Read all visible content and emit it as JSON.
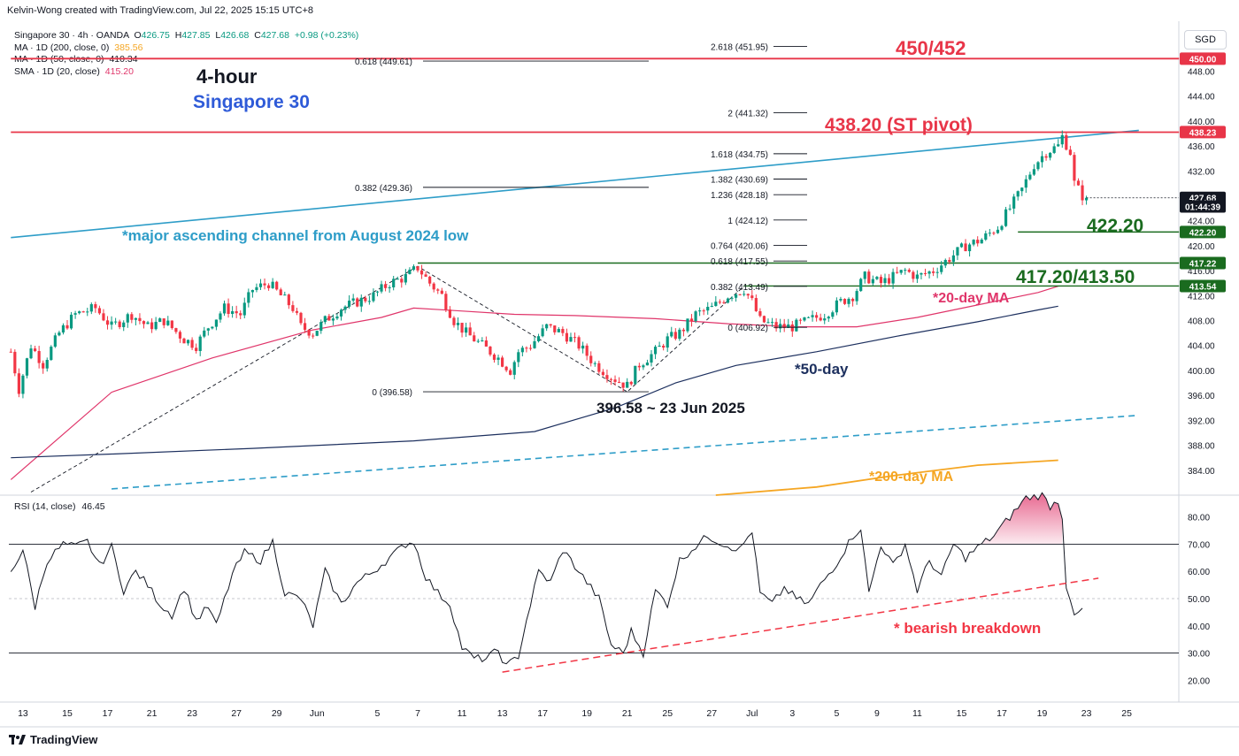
{
  "header": {
    "credit": "Kelvin-Wong created with TradingView.com, Jul 22, 2025 15:15 UTC+8"
  },
  "legend": {
    "symbol": "Singapore 30 · 4h · OANDA",
    "o_label": "O",
    "o": "426.75",
    "h_label": "H",
    "h": "427.85",
    "l_label": "L",
    "l": "426.68",
    "c_label": "C",
    "c": "427.68",
    "change": "+0.98 (+0.23%)",
    "ma200_label": "MA · 1D (200, close, 0)",
    "ma200": "385.56",
    "ma50_label": "MA · 1D (50, close, 0)",
    "ma50": "410.34",
    "sma20_label": "SMA · 1D (20, close)",
    "sma20": "415.20"
  },
  "currency": "SGD",
  "title": {
    "timeframe": "4-hour",
    "instrument": "Singapore 30"
  },
  "colors": {
    "up": "#089981",
    "down": "#f23645",
    "red_line": "#e83548",
    "green_line": "#1a6b1f",
    "channel": "#2e9dc8",
    "ma200": "#f5a623",
    "ma50": "#1c2f5e",
    "sma20": "#e0356a",
    "rsi": "#131722"
  },
  "annotations": {
    "level_450": "450/452",
    "pivot": "438.20 (ST pivot)",
    "s422": "422.20",
    "s417": "417.20/413.50",
    "channel_note": "*major ascending channel from August 2024 low",
    "sma20_note": "*20-day MA",
    "ma50_note": "*50-day",
    "ma200_note": "*200-day MA",
    "low_note": "396.58 ~ 23 Jun 2025",
    "rsi_note": "* bearish breakdown"
  },
  "fib_left": [
    {
      "label": "0.618 (449.61)",
      "value": 449.61
    },
    {
      "label": "0.382 (429.36)",
      "value": 429.36
    },
    {
      "label": "0 (396.58)",
      "value": 396.58
    }
  ],
  "fib_right": [
    {
      "label": "2.618 (451.95)",
      "value": 451.95
    },
    {
      "label": "2 (441.32)",
      "value": 441.32
    },
    {
      "label": "1.618 (434.75)",
      "value": 434.75
    },
    {
      "label": "1.382 (430.69)",
      "value": 430.69
    },
    {
      "label": "1.236 (428.18)",
      "value": 428.18
    },
    {
      "label": "1 (424.12)",
      "value": 424.12
    },
    {
      "label": "0.764 (420.06)",
      "value": 420.06
    },
    {
      "label": "0.618 (417.55)",
      "value": 417.55
    },
    {
      "label": "0.382 (413.49)",
      "value": 413.49
    },
    {
      "label": "0 (406.92)",
      "value": 406.92
    }
  ],
  "price_badges": [
    {
      "text": "450.00",
      "value": 450.0,
      "color": "#e83548"
    },
    {
      "text": "438.23",
      "value": 438.23,
      "color": "#e83548"
    },
    {
      "text": "427.68",
      "value": 427.68,
      "color": "#131722"
    },
    {
      "text": "01:44:39",
      "value": 426.3,
      "color": "#131722"
    },
    {
      "text": "422.20",
      "value": 422.2,
      "color": "#1a6b1f"
    },
    {
      "text": "417.22",
      "value": 417.22,
      "color": "#1a6b1f"
    },
    {
      "text": "413.54",
      "value": 413.54,
      "color": "#1a6b1f"
    }
  ],
  "rsi_legend": {
    "label": "RSI (14, close)",
    "value": "46.45"
  },
  "footer": {
    "brand": "TradingView"
  },
  "chart_data": {
    "type": "candlestick",
    "title": "Singapore 30 · 4h · OANDA",
    "price_axis": {
      "min": 380,
      "max": 456,
      "ticks": [
        "448.00",
        "444.00",
        "440.00",
        "436.00",
        "432.00",
        "428.00",
        "424.00",
        "420.00",
        "416.00",
        "412.00",
        "408.00",
        "404.00",
        "400.00",
        "396.00",
        "392.00",
        "388.00",
        "384.00"
      ]
    },
    "rsi_axis": {
      "min": 12,
      "max": 88,
      "ticks": [
        "80.00",
        "70.00",
        "60.00",
        "50.00",
        "40.00",
        "30.00",
        "20.00"
      ]
    },
    "time_axis": {
      "n_bars": 290,
      "ticks": [
        {
          "label": "13",
          "bar": 3
        },
        {
          "label": "15",
          "bar": 14
        },
        {
          "label": "17",
          "bar": 24
        },
        {
          "label": "21",
          "bar": 35
        },
        {
          "label": "23",
          "bar": 45
        },
        {
          "label": "27",
          "bar": 56
        },
        {
          "label": "29",
          "bar": 66
        },
        {
          "label": "Jun",
          "bar": 76
        },
        {
          "label": "5",
          "bar": 91
        },
        {
          "label": "7",
          "bar": 101
        },
        {
          "label": "11",
          "bar": 112
        },
        {
          "label": "13",
          "bar": 122
        },
        {
          "label": "17",
          "bar": 132
        },
        {
          "label": "19",
          "bar": 143
        },
        {
          "label": "21",
          "bar": 153
        },
        {
          "label": "25",
          "bar": 163
        },
        {
          "label": "27",
          "bar": 174
        },
        {
          "label": "Jul",
          "bar": 184
        },
        {
          "label": "3",
          "bar": 194
        },
        {
          "label": "5",
          "bar": 205
        },
        {
          "label": "9",
          "bar": 215
        },
        {
          "label": "11",
          "bar": 225
        },
        {
          "label": "15",
          "bar": 236
        },
        {
          "label": "17",
          "bar": 246
        },
        {
          "label": "19",
          "bar": 256
        },
        {
          "label": "23",
          "bar": 267
        },
        {
          "label": "25",
          "bar": 277
        }
      ]
    },
    "price_anchors": [
      [
        0,
        403
      ],
      [
        2,
        397
      ],
      [
        5,
        404
      ],
      [
        8,
        401
      ],
      [
        12,
        406
      ],
      [
        16,
        409
      ],
      [
        21,
        410
      ],
      [
        25,
        407
      ],
      [
        30,
        409
      ],
      [
        34,
        407
      ],
      [
        38,
        408
      ],
      [
        43,
        405
      ],
      [
        46,
        404
      ],
      [
        49,
        407
      ],
      [
        53,
        410
      ],
      [
        57,
        409
      ],
      [
        60,
        413
      ],
      [
        64,
        414
      ],
      [
        67,
        412
      ],
      [
        70,
        410
      ],
      [
        72,
        407
      ],
      [
        75,
        406
      ],
      [
        78,
        408
      ],
      [
        82,
        410
      ],
      [
        86,
        411
      ],
      [
        90,
        412
      ],
      [
        94,
        414
      ],
      [
        98,
        415
      ],
      [
        101,
        416.5
      ],
      [
        104,
        414
      ],
      [
        107,
        412
      ],
      [
        110,
        408
      ],
      [
        113,
        406
      ],
      [
        117,
        404
      ],
      [
        121,
        402
      ],
      [
        124,
        400
      ],
      [
        126,
        403
      ],
      [
        129,
        404
      ],
      [
        133,
        407
      ],
      [
        137,
        406
      ],
      [
        141,
        404
      ],
      [
        145,
        401
      ],
      [
        149,
        399
      ],
      [
        153,
        397.5
      ],
      [
        156,
        401
      ],
      [
        160,
        403
      ],
      [
        163,
        405
      ],
      [
        166,
        406
      ],
      [
        170,
        409
      ],
      [
        174,
        410
      ],
      [
        178,
        412
      ],
      [
        182,
        413
      ],
      [
        184,
        411
      ],
      [
        186,
        408
      ],
      [
        190,
        407
      ],
      [
        194,
        407
      ],
      [
        198,
        408
      ],
      [
        202,
        409
      ],
      [
        206,
        411
      ],
      [
        209,
        412
      ],
      [
        212,
        415
      ],
      [
        216,
        414
      ],
      [
        219,
        415
      ],
      [
        222,
        416
      ],
      [
        225,
        415
      ],
      [
        229,
        416
      ],
      [
        233,
        418
      ],
      [
        237,
        420
      ],
      [
        241,
        421
      ],
      [
        245,
        423
      ],
      [
        248,
        426
      ],
      [
        251,
        429
      ],
      [
        254,
        433
      ],
      [
        257,
        435
      ],
      [
        260,
        436
      ],
      [
        261,
        437.5
      ],
      [
        263,
        435
      ],
      [
        264,
        430
      ],
      [
        265,
        429
      ],
      [
        266,
        428
      ],
      [
        267,
        427.7
      ]
    ],
    "rsi_anchors": [
      [
        0,
        60
      ],
      [
        3,
        68
      ],
      [
        6,
        47
      ],
      [
        9,
        64
      ],
      [
        13,
        70
      ],
      [
        16,
        69
      ],
      [
        19,
        71
      ],
      [
        22,
        62
      ],
      [
        25,
        69
      ],
      [
        28,
        53
      ],
      [
        31,
        60
      ],
      [
        34,
        55
      ],
      [
        37,
        48
      ],
      [
        40,
        44
      ],
      [
        43,
        54
      ],
      [
        46,
        42
      ],
      [
        49,
        47
      ],
      [
        51,
        40
      ],
      [
        55,
        59
      ],
      [
        58,
        67
      ],
      [
        62,
        64
      ],
      [
        65,
        71
      ],
      [
        68,
        52
      ],
      [
        72,
        50
      ],
      [
        75,
        40
      ],
      [
        78,
        60
      ],
      [
        82,
        48
      ],
      [
        86,
        56
      ],
      [
        90,
        60
      ],
      [
        94,
        65
      ],
      [
        98,
        70
      ],
      [
        100,
        71
      ],
      [
        103,
        58
      ],
      [
        106,
        52
      ],
      [
        109,
        48
      ],
      [
        112,
        32
      ],
      [
        115,
        28
      ],
      [
        118,
        28
      ],
      [
        121,
        31
      ],
      [
        123,
        25
      ],
      [
        126,
        29
      ],
      [
        128,
        42
      ],
      [
        131,
        60
      ],
      [
        134,
        56
      ],
      [
        137,
        68
      ],
      [
        140,
        62
      ],
      [
        143,
        56
      ],
      [
        146,
        50
      ],
      [
        149,
        33
      ],
      [
        152,
        30
      ],
      [
        154,
        38
      ],
      [
        157,
        30
      ],
      [
        160,
        53
      ],
      [
        163,
        48
      ],
      [
        166,
        64
      ],
      [
        169,
        68
      ],
      [
        173,
        73
      ],
      [
        177,
        70
      ],
      [
        181,
        68
      ],
      [
        184,
        75
      ],
      [
        186,
        52
      ],
      [
        189,
        48
      ],
      [
        192,
        54
      ],
      [
        195,
        50
      ],
      [
        198,
        48
      ],
      [
        201,
        55
      ],
      [
        205,
        63
      ],
      [
        209,
        73
      ],
      [
        211,
        76
      ],
      [
        213,
        52
      ],
      [
        216,
        70
      ],
      [
        219,
        62
      ],
      [
        222,
        70
      ],
      [
        225,
        53
      ],
      [
        228,
        64
      ],
      [
        231,
        58
      ],
      [
        234,
        70
      ],
      [
        237,
        65
      ],
      [
        241,
        70
      ],
      [
        244,
        73
      ],
      [
        248,
        80
      ],
      [
        252,
        87
      ],
      [
        256,
        88
      ],
      [
        258,
        84
      ],
      [
        260,
        86
      ],
      [
        261,
        80
      ],
      [
        262,
        55
      ],
      [
        263,
        50
      ],
      [
        264,
        44
      ],
      [
        265,
        45
      ],
      [
        266,
        46.45
      ]
    ],
    "sma20": [
      [
        0,
        382.5
      ],
      [
        25,
        396.5
      ],
      [
        50,
        402
      ],
      [
        75,
        406.5
      ],
      [
        92,
        408.5
      ],
      [
        100,
        410
      ],
      [
        110,
        409.6
      ],
      [
        125,
        409
      ],
      [
        140,
        408.8
      ],
      [
        160,
        408.3
      ],
      [
        178,
        407.5
      ],
      [
        195,
        407
      ],
      [
        210,
        407
      ],
      [
        225,
        408.5
      ],
      [
        240,
        410.5
      ],
      [
        255,
        412.5
      ],
      [
        260,
        413.5
      ]
    ],
    "ma50": [
      [
        0,
        386
      ],
      [
        25,
        386.6
      ],
      [
        60,
        387.5
      ],
      [
        100,
        388.7
      ],
      [
        130,
        390.2
      ],
      [
        150,
        394
      ],
      [
        165,
        398
      ],
      [
        180,
        400.8
      ],
      [
        200,
        403
      ],
      [
        220,
        405.5
      ],
      [
        240,
        407.8
      ],
      [
        255,
        409.7
      ],
      [
        260,
        410.3
      ]
    ],
    "ma200": [
      [
        175,
        380
      ],
      [
        200,
        381.3
      ],
      [
        220,
        383.2
      ],
      [
        240,
        384.8
      ],
      [
        260,
        385.6
      ]
    ],
    "channel_upper": [
      [
        0,
        421.3
      ],
      [
        280,
        438.5
      ]
    ],
    "channel_lower": [
      [
        25,
        381
      ],
      [
        280,
        392.8
      ]
    ],
    "rsi_trendline": [
      [
        122,
        23
      ],
      [
        270,
        57.5
      ]
    ],
    "abc_path": [
      [
        5,
        380.5
      ],
      [
        101,
        416.7
      ],
      [
        153,
        396.58
      ],
      [
        182,
        413.5
      ]
    ],
    "h_lines": [
      {
        "value": 450.0,
        "color": "red",
        "from": 0,
        "to": 290
      },
      {
        "value": 438.2,
        "color": "red",
        "from": 0,
        "to": 290
      },
      {
        "value": 422.2,
        "color": "green",
        "from": 250,
        "to": 290
      },
      {
        "value": 417.22,
        "color": "green",
        "from": 101,
        "to": 290
      },
      {
        "value": 413.54,
        "color": "green",
        "from": 182,
        "to": 290
      }
    ]
  }
}
